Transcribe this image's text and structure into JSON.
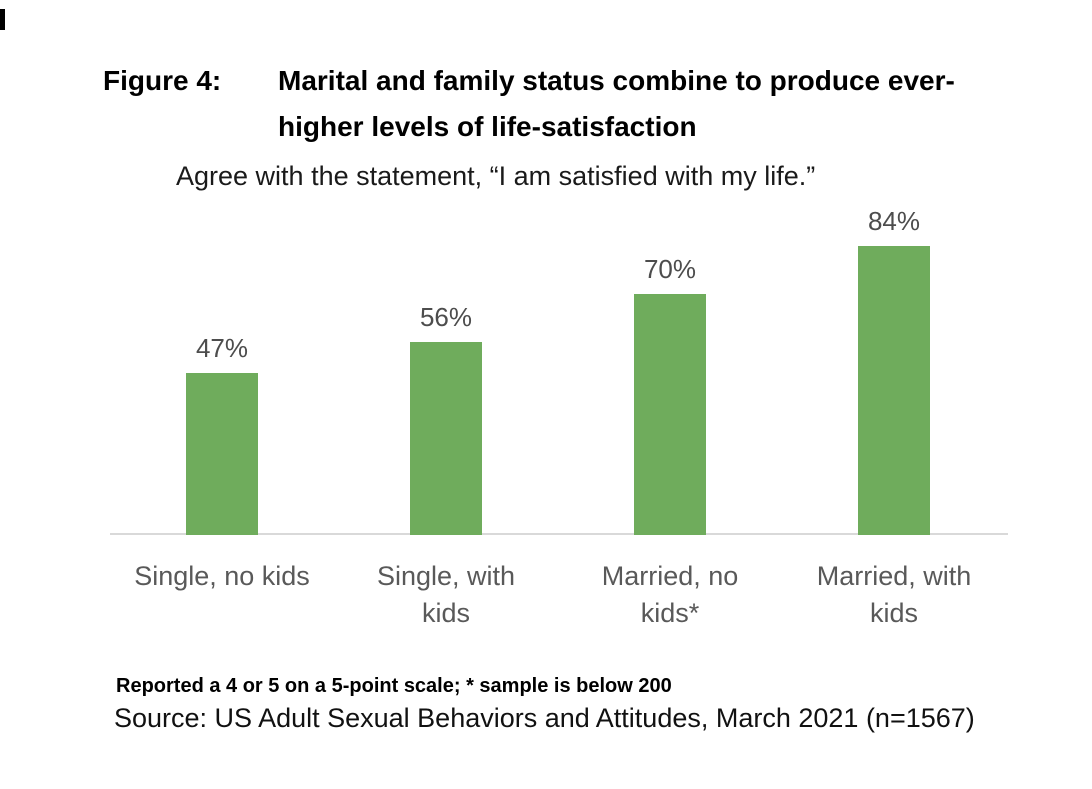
{
  "figure": {
    "label": "Figure 4:",
    "title_lines": [
      "Marital and family status combine to produce ever-",
      "higher levels of life-satisfaction"
    ],
    "subtitle": "Agree with the statement, “I am satisfied with my life.”",
    "footnote": "Reported a 4 or 5 on a 5-point scale; * sample is below 200",
    "source": "Source: US Adult Sexual Behaviors and Attitudes, March 2021 (n=1567)"
  },
  "chart_data": {
    "type": "bar",
    "title": "Agree with the statement, “I am satisfied with my life.”",
    "categories": [
      "Single, no kids",
      "Single, with\nkids",
      "Married, no\nkids*",
      "Married, with\nkids"
    ],
    "values": [
      47,
      56,
      70,
      84
    ],
    "data_labels": [
      "47%",
      "56%",
      "70%",
      "84%"
    ],
    "xlabel": "",
    "ylabel": "",
    "ylim": [
      0,
      100
    ],
    "grid": false,
    "legend": false,
    "bar_color": "#6FAC5C",
    "value_label_color": "#4D4D4D",
    "category_label_color": "#595959",
    "axis_line_color": "#D9D9D9"
  }
}
